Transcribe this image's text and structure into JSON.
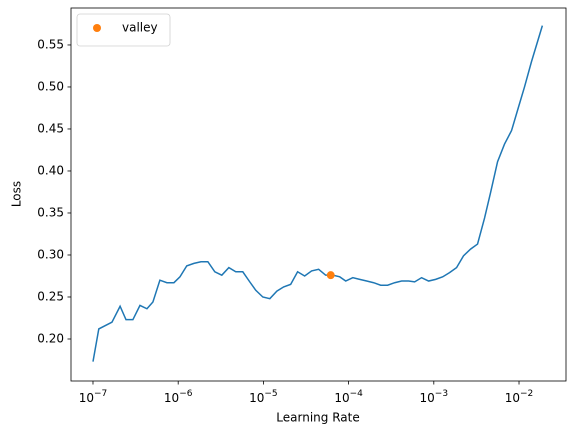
{
  "chart_data": {
    "type": "line",
    "xlabel": "Learning Rate",
    "ylabel": "Loss",
    "xscale": "log",
    "xlim": [
      5.52e-08,
      0.0356
    ],
    "ylim": [
      0.15,
      0.594
    ],
    "xticks": [
      {
        "value": 1e-07,
        "label": "10−7"
      },
      {
        "value": 1e-06,
        "label": "10−6"
      },
      {
        "value": 1e-05,
        "label": "10−5"
      },
      {
        "value": 0.0001,
        "label": "10−4"
      },
      {
        "value": 0.001,
        "label": "10−3"
      },
      {
        "value": 0.01,
        "label": "10−2"
      }
    ],
    "yticks": [
      {
        "value": 0.2,
        "label": "0.20"
      },
      0.25,
      {
        "value": 0.3,
        "label": "0.30"
      },
      0.35,
      {
        "value": 0.4,
        "label": "0.40"
      },
      0.45,
      {
        "value": 0.5,
        "label": "0.50"
      },
      0.55
    ],
    "legend": "upper left",
    "series": [
      {
        "kind": "line",
        "color": "#1f77b4",
        "x": [
          1e-07,
          1.17e-07,
          1.67e-07,
          2.08e-07,
          2.44e-07,
          2.94e-07,
          3.56e-07,
          4.3e-07,
          5.05e-07,
          6.1e-07,
          7.38e-07,
          8.91e-07,
          1.05e-06,
          1.26e-06,
          1.53e-06,
          1.85e-06,
          2.23e-06,
          2.69e-06,
          3.25e-06,
          3.93e-06,
          4.74e-06,
          5.73e-06,
          6.92e-06,
          8.14e-06,
          9.84e-06,
          1.19e-05,
          1.44e-05,
          1.73e-05,
          2.09e-05,
          2.52e-05,
          3.05e-05,
          3.68e-05,
          4.45e-05,
          5.38e-05,
          6.52e-05,
          7.87e-05,
          9.25e-05,
          0.000112,
          0.000135,
          0.000163,
          0.000197,
          0.000238,
          0.000287,
          0.000347,
          0.000419,
          0.000507,
          0.000596,
          0.000719,
          0.000869,
          0.00105,
          0.00127,
          0.00153,
          0.00185,
          0.00223,
          0.0027,
          0.00326,
          0.00394,
          0.00463,
          0.0056,
          0.00676,
          0.00817,
          0.00986,
          0.0116,
          0.014,
          0.0188
        ],
        "values": [
          0.173,
          0.212,
          0.22,
          0.239,
          0.223,
          0.223,
          0.24,
          0.236,
          0.244,
          0.27,
          0.267,
          0.267,
          0.274,
          0.287,
          0.29,
          0.292,
          0.292,
          0.28,
          0.276,
          0.285,
          0.28,
          0.28,
          0.268,
          0.258,
          0.25,
          0.248,
          0.257,
          0.262,
          0.265,
          0.28,
          0.275,
          0.281,
          0.283,
          0.276,
          0.276,
          0.274,
          0.269,
          0.273,
          0.271,
          0.269,
          0.267,
          0.264,
          0.264,
          0.267,
          0.269,
          0.269,
          0.268,
          0.273,
          0.269,
          0.271,
          0.274,
          0.279,
          0.285,
          0.299,
          0.307,
          0.313,
          0.344,
          0.374,
          0.411,
          0.432,
          0.448,
          0.476,
          0.5,
          0.53,
          0.573
        ]
      },
      {
        "kind": "scatter",
        "name": "valley",
        "color": "#ff7f0e",
        "x": [
          6.17e-05
        ],
        "values": [
          0.276
        ]
      }
    ]
  }
}
